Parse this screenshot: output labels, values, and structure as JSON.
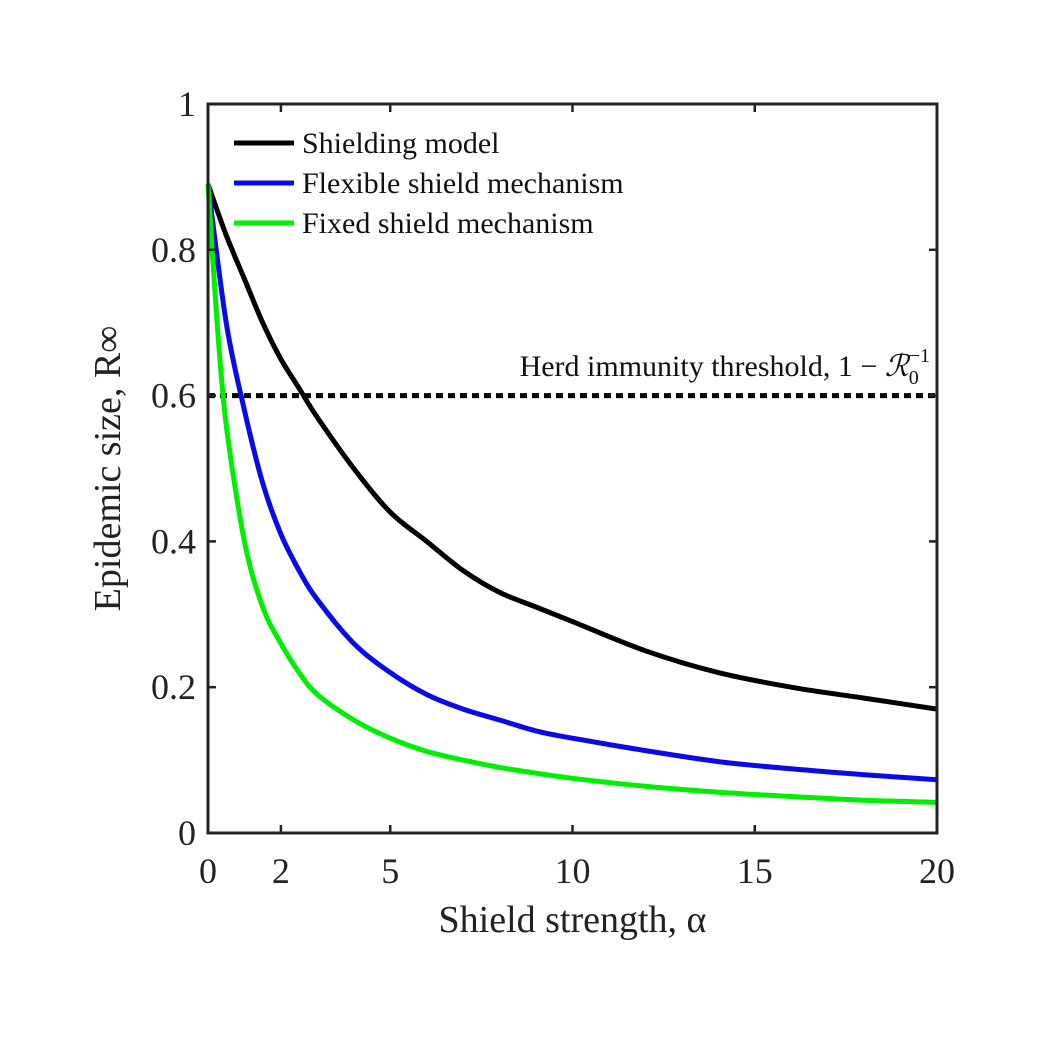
{
  "chart_data": {
    "type": "line",
    "xlabel": "Shield strength, α",
    "ylabel": "Epidemic size, R∞",
    "xlim": [
      0,
      20
    ],
    "ylim": [
      0,
      1
    ],
    "xticks": [
      0,
      2,
      5,
      10,
      15,
      20
    ],
    "xtick_labels": [
      "0",
      "2",
      "5",
      "10",
      "15",
      "20"
    ],
    "yticks": [
      0,
      0.2,
      0.4,
      0.6,
      0.8,
      1
    ],
    "ytick_labels": [
      "0",
      "0.2",
      "0.4",
      "0.6",
      "0.8",
      "1"
    ],
    "grid": false,
    "legend_position": "top-left",
    "series": [
      {
        "name": "Shielding model",
        "color": "#000000",
        "x": [
          0,
          0.5,
          1,
          1.5,
          2,
          2.5,
          3,
          4,
          5,
          6,
          7,
          8,
          9,
          10,
          12,
          14,
          16,
          18,
          20
        ],
        "y": [
          0.89,
          0.82,
          0.76,
          0.7,
          0.65,
          0.61,
          0.57,
          0.5,
          0.44,
          0.4,
          0.36,
          0.33,
          0.31,
          0.29,
          0.25,
          0.22,
          0.2,
          0.185,
          0.17
        ]
      },
      {
        "name": "Flexible shield mechanism",
        "color": "#0a0ae6",
        "x": [
          0,
          0.5,
          1,
          1.5,
          2,
          2.5,
          3,
          4,
          5,
          6,
          7,
          8,
          9,
          10,
          12,
          14,
          16,
          18,
          20
        ],
        "y": [
          0.89,
          0.7,
          0.58,
          0.48,
          0.41,
          0.36,
          0.32,
          0.26,
          0.22,
          0.19,
          0.17,
          0.155,
          0.14,
          0.13,
          0.113,
          0.098,
          0.088,
          0.08,
          0.073
        ]
      },
      {
        "name": "Fixed shield mechanism",
        "color": "#00ee00",
        "x": [
          0,
          0.25,
          0.5,
          1,
          1.5,
          2,
          2.5,
          3,
          4,
          5,
          6,
          7,
          8,
          9,
          10,
          12,
          14,
          16,
          18,
          20
        ],
        "y": [
          0.89,
          0.7,
          0.56,
          0.4,
          0.31,
          0.26,
          0.22,
          0.19,
          0.155,
          0.13,
          0.112,
          0.1,
          0.09,
          0.082,
          0.075,
          0.064,
          0.056,
          0.05,
          0.045,
          0.042
        ]
      }
    ],
    "threshold": {
      "y": 0.6,
      "label_text": "Herd immunity threshold, 1 − ",
      "label_symbol": "ℛ",
      "label_sub": "0",
      "label_sup": "−1",
      "color": "#000000"
    }
  }
}
